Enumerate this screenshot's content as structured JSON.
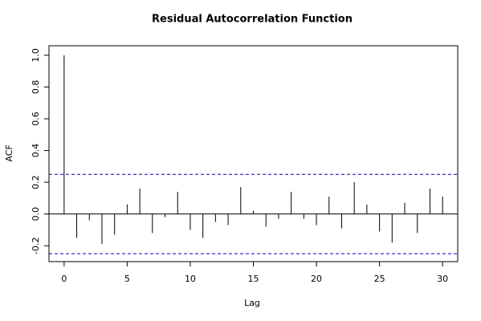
{
  "chart_data": {
    "type": "acf",
    "title": "Residual Autocorrelation Function",
    "x_label": "Lag",
    "y_label": "ACF",
    "x": [
      0,
      1,
      2,
      3,
      4,
      5,
      6,
      7,
      8,
      9,
      10,
      11,
      12,
      13,
      14,
      15,
      16,
      17,
      18,
      19,
      20,
      21,
      22,
      23,
      24,
      25,
      26,
      27,
      28,
      29,
      30
    ],
    "values": [
      1.0,
      -0.15,
      -0.04,
      -0.19,
      -0.13,
      0.06,
      0.16,
      -0.12,
      -0.02,
      0.14,
      -0.1,
      -0.15,
      -0.05,
      -0.07,
      0.17,
      0.02,
      -0.08,
      -0.03,
      0.14,
      -0.03,
      -0.07,
      0.11,
      -0.09,
      0.2,
      0.06,
      -0.11,
      -0.18,
      0.07,
      -0.12,
      0.16,
      0.11
    ],
    "color": "#000000",
    "confidence_bound": 0.25,
    "confidence_color": "#0000cd",
    "xlim": [
      -1.2,
      31.2
    ],
    "ylim": [
      -0.3,
      1.06
    ],
    "xticks": [
      0,
      5,
      10,
      15,
      20,
      25,
      30
    ],
    "yticks": [
      -0.2,
      {
        "value": 0,
        "label": "0.0"
      },
      0.2,
      0.4,
      0.6,
      0.8,
      {
        "value": 1,
        "label": "1.0"
      }
    ]
  }
}
